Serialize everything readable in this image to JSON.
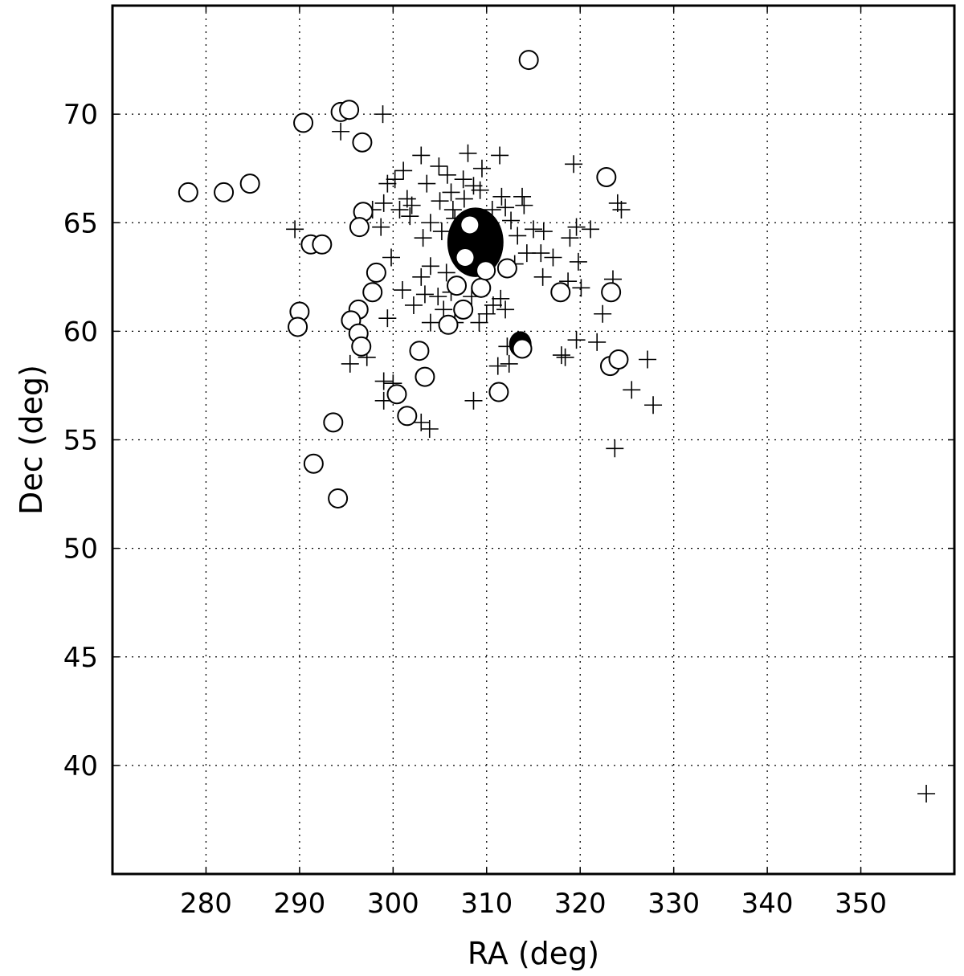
{
  "chart_data": {
    "type": "scatter",
    "title": "",
    "xlabel": "RA (deg)",
    "ylabel": "Dec (deg)",
    "xlim": [
      270,
      360
    ],
    "ylim": [
      35,
      75
    ],
    "xticks": [
      280,
      290,
      300,
      310,
      320,
      330,
      340,
      350
    ],
    "yticks": [
      40,
      45,
      50,
      55,
      60,
      65,
      70
    ],
    "grid": true,
    "legend": "none",
    "dense_clusters": [
      {
        "x": 308.8,
        "y": 64.1,
        "rx": 3.0,
        "ry": 1.6
      },
      {
        "x": 313.6,
        "y": 59.4,
        "rx": 1.2,
        "ry": 0.6
      }
    ],
    "series": [
      {
        "marker": "plus",
        "points": [
          [
            298.9,
            70.0
          ],
          [
            294.4,
            69.2
          ],
          [
            303.0,
            68.1
          ],
          [
            304.9,
            67.6
          ],
          [
            305.8,
            67.2
          ],
          [
            307.5,
            67.0
          ],
          [
            308.0,
            68.2
          ],
          [
            309.5,
            67.5
          ],
          [
            311.4,
            68.1
          ],
          [
            301.1,
            67.4
          ],
          [
            300.2,
            67.0
          ],
          [
            299.4,
            66.8
          ],
          [
            303.6,
            66.8
          ],
          [
            306.2,
            66.4
          ],
          [
            308.6,
            66.7
          ],
          [
            311.6,
            66.2
          ],
          [
            313.8,
            66.2
          ],
          [
            302.0,
            65.8
          ],
          [
            300.7,
            65.6
          ],
          [
            299.0,
            65.9
          ],
          [
            301.8,
            65.3
          ],
          [
            304.0,
            65.0
          ],
          [
            297.8,
            65.6
          ],
          [
            298.7,
            64.8
          ],
          [
            303.2,
            64.3
          ],
          [
            305.2,
            64.6
          ],
          [
            306.6,
            65.2
          ],
          [
            312.6,
            65.1
          ],
          [
            313.3,
            64.4
          ],
          [
            315.0,
            64.7
          ],
          [
            316.1,
            64.6
          ],
          [
            314.3,
            63.6
          ],
          [
            315.8,
            63.6
          ],
          [
            317.1,
            63.4
          ],
          [
            316.0,
            62.5
          ],
          [
            313.0,
            63.1
          ],
          [
            304.0,
            63.0
          ],
          [
            303.0,
            62.5
          ],
          [
            305.7,
            62.7
          ],
          [
            306.2,
            61.8
          ],
          [
            304.8,
            61.6
          ],
          [
            303.4,
            61.7
          ],
          [
            305.4,
            61.0
          ],
          [
            308.4,
            61.6
          ],
          [
            310.7,
            61.2
          ],
          [
            311.5,
            61.5
          ],
          [
            310.0,
            60.8
          ],
          [
            312.0,
            61.0
          ],
          [
            301.0,
            61.9
          ],
          [
            299.8,
            63.4
          ],
          [
            299.4,
            60.6
          ],
          [
            304.0,
            60.4
          ],
          [
            309.2,
            60.4
          ],
          [
            289.5,
            64.7
          ],
          [
            295.4,
            58.5
          ],
          [
            297.2,
            58.8
          ],
          [
            299.0,
            57.7
          ],
          [
            299.0,
            56.8
          ],
          [
            300.0,
            57.6
          ],
          [
            303.0,
            55.8
          ],
          [
            303.9,
            55.5
          ],
          [
            308.6,
            56.8
          ],
          [
            311.2,
            58.4
          ],
          [
            312.4,
            58.5
          ],
          [
            312.2,
            59.3
          ],
          [
            318.0,
            58.9
          ],
          [
            318.4,
            58.8
          ],
          [
            319.6,
            59.6
          ],
          [
            322.4,
            60.8
          ],
          [
            321.8,
            59.5
          ],
          [
            318.9,
            64.3
          ],
          [
            319.6,
            64.8
          ],
          [
            319.3,
            67.7
          ],
          [
            321.1,
            64.7
          ],
          [
            320.1,
            62.0
          ],
          [
            318.7,
            62.3
          ],
          [
            319.8,
            63.2
          ],
          [
            323.5,
            62.4
          ],
          [
            324.0,
            65.9
          ],
          [
            324.4,
            65.6
          ],
          [
            327.2,
            58.7
          ],
          [
            325.5,
            57.3
          ],
          [
            327.8,
            56.6
          ],
          [
            323.7,
            54.6
          ],
          [
            357.0,
            38.7
          ],
          [
            302.2,
            61.2
          ],
          [
            306.6,
            60.4
          ],
          [
            301.5,
            66.1
          ],
          [
            305.0,
            66.0
          ],
          [
            307.6,
            66.1
          ],
          [
            309.3,
            66.5
          ],
          [
            312.0,
            65.7
          ],
          [
            314.0,
            65.8
          ],
          [
            310.6,
            65.6
          ],
          [
            306.4,
            65.6
          ]
        ]
      },
      {
        "marker": "open-circle",
        "points": [
          [
            278.1,
            66.4
          ],
          [
            281.9,
            66.4
          ],
          [
            284.7,
            66.8
          ],
          [
            290.4,
            69.6
          ],
          [
            294.4,
            70.1
          ],
          [
            295.3,
            70.2
          ],
          [
            296.7,
            68.7
          ],
          [
            314.5,
            72.5
          ],
          [
            296.8,
            65.5
          ],
          [
            296.4,
            64.8
          ],
          [
            291.2,
            64.0
          ],
          [
            292.4,
            64.0
          ],
          [
            298.2,
            62.7
          ],
          [
            297.8,
            61.8
          ],
          [
            296.3,
            61.0
          ],
          [
            290.0,
            60.9
          ],
          [
            289.8,
            60.2
          ],
          [
            295.5,
            60.5
          ],
          [
            296.3,
            59.9
          ],
          [
            296.6,
            59.3
          ],
          [
            302.8,
            59.1
          ],
          [
            303.4,
            57.9
          ],
          [
            300.4,
            57.1
          ],
          [
            301.5,
            56.1
          ],
          [
            293.6,
            55.8
          ],
          [
            291.5,
            53.9
          ],
          [
            294.1,
            52.3
          ],
          [
            305.9,
            60.3
          ],
          [
            307.5,
            61.0
          ],
          [
            306.8,
            62.1
          ],
          [
            309.4,
            62.0
          ],
          [
            309.9,
            62.8
          ],
          [
            312.2,
            62.9
          ],
          [
            311.3,
            57.2
          ],
          [
            317.9,
            61.8
          ],
          [
            323.3,
            61.8
          ],
          [
            322.8,
            67.1
          ],
          [
            323.2,
            58.4
          ],
          [
            324.1,
            58.7
          ],
          [
            308.2,
            64.9
          ],
          [
            307.7,
            63.4
          ],
          [
            313.8,
            59.2
          ]
        ]
      }
    ]
  }
}
